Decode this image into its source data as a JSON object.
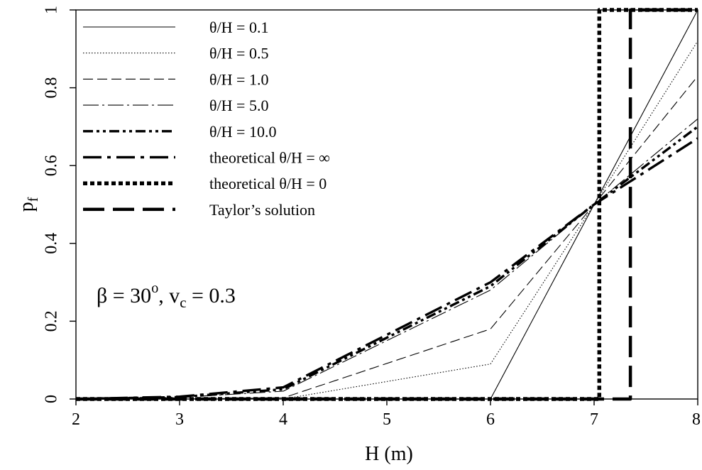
{
  "chart_data": {
    "type": "line",
    "xlabel": "H (m)",
    "ylabel": "p",
    "ylabel_sub": "f",
    "xlim": [
      2,
      8
    ],
    "ylim": [
      0,
      1
    ],
    "xticks": [
      2,
      3,
      4,
      5,
      6,
      7,
      8
    ],
    "yticks": [
      0,
      0.2,
      0.4,
      0.6,
      0.8,
      1
    ],
    "ytick_labels": [
      "0",
      "0.2",
      "0.4",
      "0.6",
      "0.8",
      "1"
    ],
    "grid": false,
    "legend_position": "top-left",
    "annotation": {
      "pre": "β = 30",
      "degree": "o",
      "mid": ", v",
      "sub": "c",
      "post": " = 0.3"
    },
    "series": [
      {
        "name": "θ/H = 0.1",
        "style": "thin-solid",
        "x": [
          2,
          3,
          4,
          6,
          7,
          8
        ],
        "y": [
          0,
          0,
          0,
          0,
          0.5,
          1.0
        ]
      },
      {
        "name": "θ/H = 0.5",
        "style": "thin-dotted",
        "x": [
          2,
          3,
          4,
          6,
          7,
          8
        ],
        "y": [
          0,
          0,
          0,
          0.09,
          0.5,
          0.92
        ]
      },
      {
        "name": "θ/H = 1.0",
        "style": "thin-dashed",
        "x": [
          2,
          3,
          4,
          6,
          7,
          8
        ],
        "y": [
          0,
          0,
          0.003,
          0.18,
          0.5,
          0.83
        ]
      },
      {
        "name": "θ/H = 5.0",
        "style": "thin-dashdot",
        "x": [
          2,
          3,
          4,
          6,
          7,
          8
        ],
        "y": [
          0,
          0.004,
          0.02,
          0.28,
          0.5,
          0.72
        ]
      },
      {
        "name": "θ/H = 10.0",
        "style": "thick-dashdot",
        "x": [
          2,
          3,
          4,
          6,
          7,
          8
        ],
        "y": [
          0,
          0.005,
          0.025,
          0.29,
          0.5,
          0.7
        ]
      },
      {
        "name": "theoretical θ/H = ∞",
        "style": "thick-longdashdot",
        "x": [
          2,
          3,
          4,
          6,
          7,
          8
        ],
        "y": [
          0,
          0.006,
          0.03,
          0.3,
          0.5,
          0.67
        ]
      },
      {
        "name": "theoretical θ/H = 0",
        "style": "thick-dotted",
        "x": [
          2,
          7.05,
          7.05,
          8
        ],
        "y": [
          0,
          0,
          1,
          1
        ]
      },
      {
        "name": "Taylor’s solution",
        "style": "thick-longdash",
        "x": [
          2,
          7.35,
          7.35,
          8
        ],
        "y": [
          0,
          0,
          1,
          1
        ]
      }
    ]
  }
}
